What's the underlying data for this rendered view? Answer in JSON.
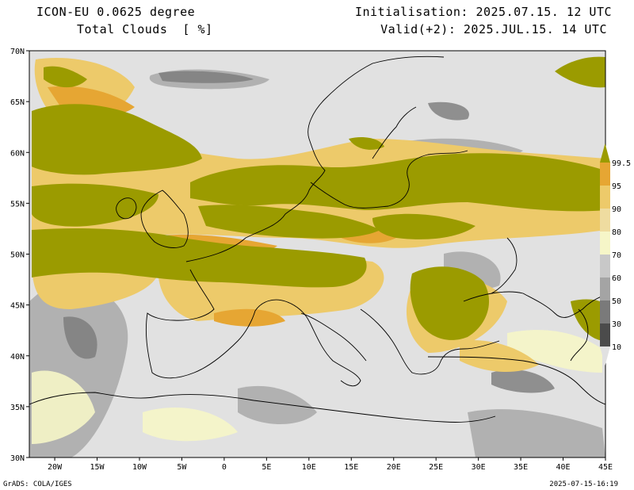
{
  "header": {
    "model": "ICON-EU 0.0625 degree",
    "field": "Total Clouds  [ %]",
    "init": "Initialisation: 2025.07.15. 12 UTC",
    "valid": "Valid(+2): 2025.JUL.15. 14 UTC"
  },
  "map": {
    "lon_labels": [
      "20W",
      "15W",
      "10W",
      "5W",
      "0",
      "5E",
      "10E",
      "15E",
      "20E",
      "25E",
      "30E",
      "35E",
      "40E",
      "45E"
    ],
    "lat_labels": [
      "70N",
      "65N",
      "60N",
      "55N",
      "50N",
      "45N",
      "40N",
      "35N",
      "30N"
    ],
    "lon_range": [
      -23,
      45
    ],
    "lat_range": [
      30,
      70
    ]
  },
  "colorbar": {
    "labels": [
      "10",
      "30",
      "50",
      "60",
      "70",
      "80",
      "90",
      "95",
      "99.5"
    ],
    "colors": [
      "#4b4b4b",
      "#7a7a7a",
      "#a4a4a4",
      "#c8c8c8",
      "#f6f6c8",
      "#efdca0",
      "#edca6a",
      "#e6a633",
      "#9b9b00"
    ],
    "background": "#e1e1e1"
  },
  "footer": {
    "left": "GrADS: COLA/IGES",
    "right": "2025-07-15-16:19"
  }
}
